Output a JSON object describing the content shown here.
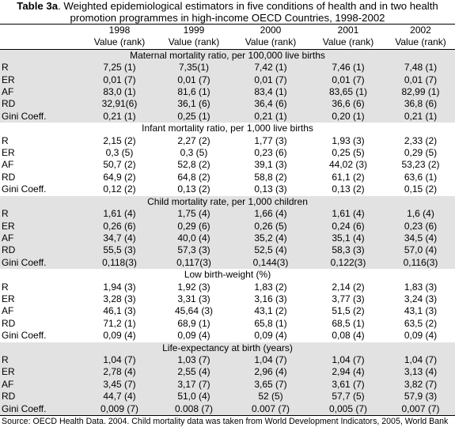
{
  "title": {
    "bold": "Table 3a",
    "rest": ". Weighted epidemiological estimators in five conditions of health and in two health promotion programmes in high-income OECD Countries, 1998-2002"
  },
  "years": [
    "1998",
    "1999",
    "2000",
    "2001",
    "2002"
  ],
  "value_header": [
    "Value (rank)",
    "Value (rank)",
    "Value (rank)",
    "Value (rank)",
    "Value (rank)"
  ],
  "sections": [
    {
      "heading": "Maternal mortality ratio, per 100,000 live births",
      "rows": [
        {
          "label": "R",
          "values": [
            "7,25 (1)",
            "7,35(1)",
            "7,42 (1)",
            "7,46 (1)",
            "7,48 (1)"
          ]
        },
        {
          "label": "ER",
          "values": [
            "0,01 (7)",
            "0,01 (7)",
            "0,01 (7)",
            "0,01 (7)",
            "0,01 (7)"
          ]
        },
        {
          "label": "AF",
          "values": [
            "83,0 (1)",
            "81,6 (1)",
            "83,4 (1)",
            "83,65 (1)",
            "82,99 (1)"
          ]
        },
        {
          "label": "RD",
          "values": [
            "32,91(6)",
            "36,1 (6)",
            "36,4 (6)",
            "36,6 (6)",
            "36,8 (6)"
          ]
        },
        {
          "label": "Gini Coeff.",
          "values": [
            "0,21 (1)",
            "0,25 (1)",
            "0,21 (1)",
            "0,20 (1)",
            "0,21 (1)"
          ]
        }
      ]
    },
    {
      "heading": "Infant mortality ratio, per 1,000 live births",
      "rows": [
        {
          "label": "R",
          "values": [
            "2,15 (2)",
            "2,27 (2)",
            "1,77 (3)",
            "1,93 (3)",
            "2,33 (2)"
          ]
        },
        {
          "label": "ER",
          "values": [
            "0,3 (5)",
            "0,3 (5)",
            "0,23 (6)",
            "0,25 (5)",
            "0,29 (5)"
          ]
        },
        {
          "label": "AF",
          "values": [
            "50,7 (2)",
            "52,8 (2)",
            "39,1 (3)",
            "44,02 (3)",
            "53,23 (2)"
          ]
        },
        {
          "label": "RD",
          "values": [
            "64,9 (2)",
            "64,8 (2)",
            "58,8 (2)",
            "61,1 (2)",
            "63,6 (1)"
          ]
        },
        {
          "label": "Gini Coeff.",
          "values": [
            "0,12 (2)",
            "0,13 (2)",
            "0,13 (3)",
            "0,13 (2)",
            "0,15 (2)"
          ]
        }
      ]
    },
    {
      "heading": "Child mortality rate, per 1,000 children",
      "rows": [
        {
          "label": "R",
          "values": [
            "1,61 (4)",
            "1,75 (4)",
            "1,66 (4)",
            "1,61 (4)",
            "1,6 (4)"
          ]
        },
        {
          "label": "ER",
          "values": [
            "0,26 (6)",
            "0,29 (6)",
            "0,26 (5)",
            "0,24 (6)",
            "0,23 (6)"
          ]
        },
        {
          "label": "AF",
          "values": [
            "34,7 (4)",
            "40,0 (4)",
            "35,2 (4)",
            "35,1 (4)",
            "34,5 (4)"
          ]
        },
        {
          "label": "RD",
          "values": [
            "55,5 (3)",
            "57,3 (3)",
            "52,5 (4)",
            "58,3 (3)",
            "57,0 (4)"
          ]
        },
        {
          "label": "Gini Coeff.",
          "values": [
            "0,118(3)",
            "0,117(3)",
            "0,144(3)",
            "0,122(3)",
            "0,116(3)"
          ]
        }
      ]
    },
    {
      "heading": "Low birth-weight (%)",
      "rows": [
        {
          "label": "R",
          "values": [
            "1,94 (3)",
            "1,92 (3)",
            "1,83 (2)",
            "2,14 (2)",
            "1,83 (3)"
          ]
        },
        {
          "label": "ER",
          "values": [
            "3,28 (3)",
            "3,31 (3)",
            "3,16 (3)",
            "3,77 (3)",
            "3,24 (3)"
          ]
        },
        {
          "label": "AF",
          "values": [
            "46,1 (3)",
            "45,64 (3)",
            "43,1 (2)",
            "51,5 (2)",
            "43,1 (3)"
          ]
        },
        {
          "label": "RD",
          "values": [
            "71,2 (1)",
            "68,9 (1)",
            "65,8 (1)",
            "68,5 (1)",
            "63,5 (2)"
          ]
        },
        {
          "label": "Gini Coeff.",
          "values": [
            "0,09 (4)",
            "0,09 (4)",
            "0,09 (4)",
            "0,08 (4)",
            "0,09 (4)"
          ]
        }
      ]
    },
    {
      "heading": "Life-expectancy at birth (years)",
      "rows": [
        {
          "label": "R",
          "values": [
            "1,04 (7)",
            "1,03 (7)",
            "1,04 (7)",
            "1,04 (7)",
            "1,04 (7)"
          ]
        },
        {
          "label": "ER",
          "values": [
            "2,78 (4)",
            "2,55 (4)",
            "2,96 (4)",
            "2,94 (4)",
            "3,13 (4)"
          ]
        },
        {
          "label": "AF",
          "values": [
            "3,45 (7)",
            "3,17 (7)",
            "3,65 (7)",
            "3,61 (7)",
            "3,82 (7)"
          ]
        },
        {
          "label": "RD",
          "values": [
            "44,7 (4)",
            "51,0 (4)",
            "52 (5)",
            "57,7 (5)",
            "57,9 (3)"
          ]
        },
        {
          "label": "Gini Coeff.",
          "values": [
            "0,009 (7)",
            "0.008 (7)",
            "0.007 (7)",
            "0,005 (7)",
            "0,007 (7)"
          ]
        }
      ]
    }
  ],
  "source": "Source: OECD Health Data. 2004. Child mortality data was taken from World Development Indicators, 2005, World Bank",
  "colors": {
    "shade": "#e2e2e2",
    "text": "#000000",
    "rule": "#000000"
  }
}
